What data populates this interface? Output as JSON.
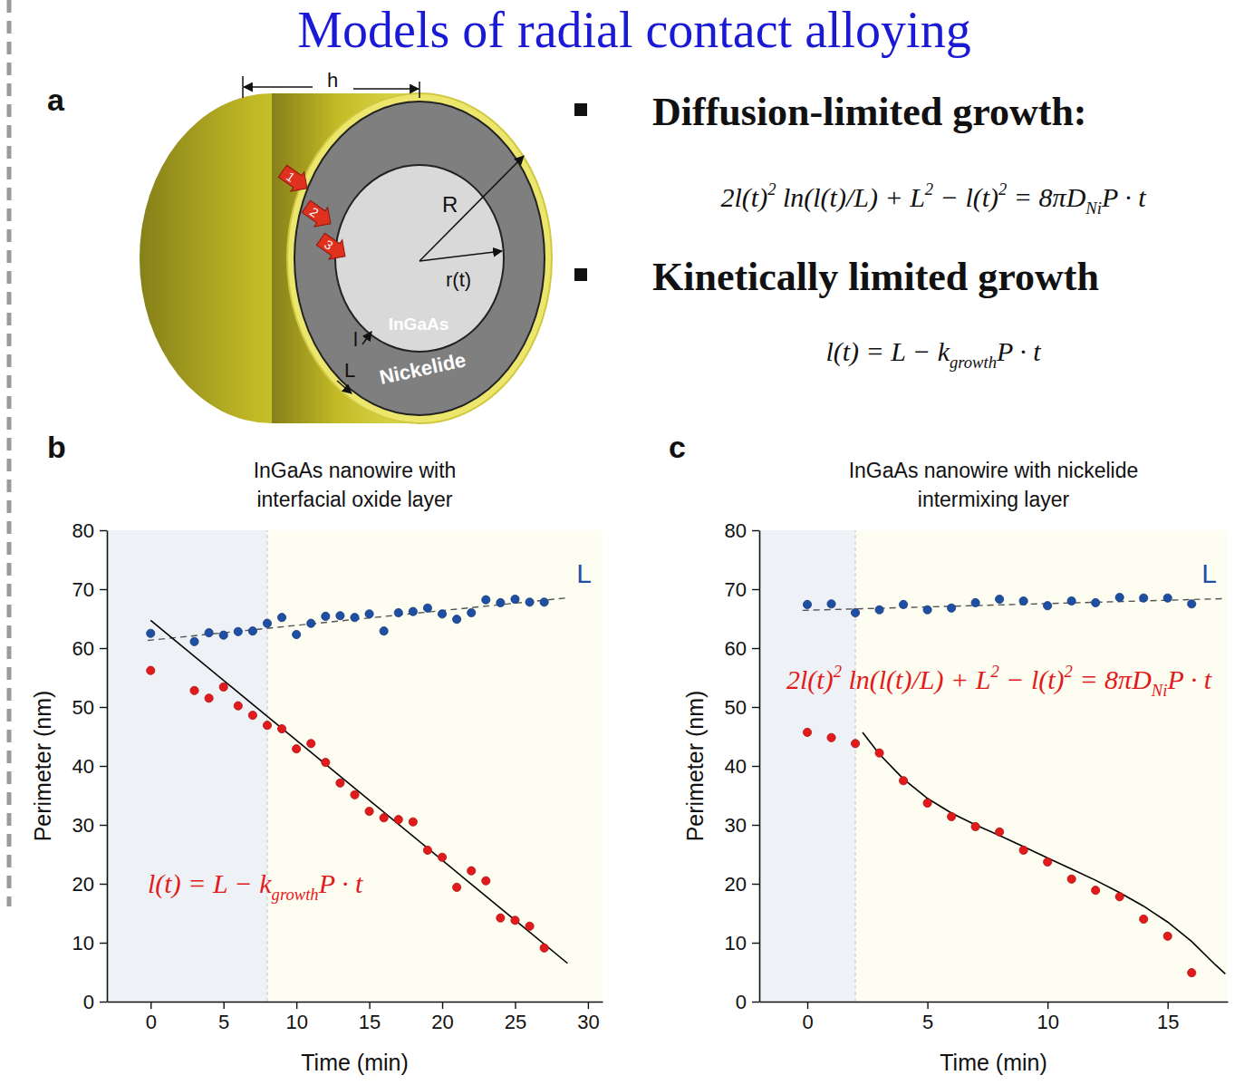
{
  "title": "Models of radial contact alloying",
  "panel_labels": [
    "a",
    "b",
    "c"
  ],
  "diagram": {
    "h": "h",
    "R": "R",
    "r": "r(t)",
    "core": "InGaAs",
    "shell": "Nickelide",
    "l": "l",
    "L": "L",
    "steps": [
      "1",
      "2",
      "3"
    ]
  },
  "equations": [
    {
      "heading": "Diffusion-limited growth:",
      "equation": [
        "2l(t)",
        {
          "sup": "2"
        },
        " ln(l(t)/L) + L",
        {
          "sup": "2"
        },
        " − l(t)",
        {
          "sup": "2"
        },
        " = 8πD",
        {
          "sub": "Ni"
        },
        "P · t"
      ]
    },
    {
      "heading": "Kinetically limited growth",
      "equation": [
        "l(t) = L − k",
        {
          "sub": "growth"
        },
        "P · t"
      ]
    }
  ],
  "chart_data": [
    {
      "type": "scatter",
      "title": "InGaAs nanowire with interfacial oxide layer",
      "x_label": "Time (min)",
      "y_label": "Perimeter (nm)",
      "xlim": [
        -3,
        31
      ],
      "xticks": [
        0,
        5,
        10,
        15,
        20,
        25,
        30
      ],
      "ylim": [
        0,
        80
      ],
      "yticks": [
        0,
        10,
        20,
        30,
        40,
        50,
        60,
        70,
        80
      ],
      "divider_x": 8,
      "annotation": [
        "l(t) = L − k",
        {
          "sub": "growth"
        },
        "P · t"
      ],
      "series": [
        {
          "name": "L",
          "type": "scatter",
          "marker": "circle",
          "color": "#1f4fa3",
          "x": [
            0,
            3,
            4,
            5,
            6,
            7,
            8,
            9,
            10,
            11,
            12,
            13,
            14,
            15,
            16,
            17,
            18,
            19,
            20,
            21,
            22,
            23,
            24,
            25,
            26,
            27
          ],
          "values": [
            62.5,
            61.1,
            62.6,
            62.2,
            62.8,
            62.9,
            64.2,
            65.2,
            62.3,
            64.2,
            65.4,
            65.5,
            65.2,
            65.8,
            62.9,
            66.0,
            66.2,
            66.8,
            65.8,
            64.9,
            66.0,
            68.2,
            67.7,
            68.3,
            67.8,
            67.8
          ]
        },
        {
          "type": "scatter",
          "marker": "circle",
          "color": "#e31a1c",
          "x": [
            0,
            3,
            4,
            5,
            6,
            7,
            8,
            9,
            10,
            11,
            12,
            13,
            14,
            15,
            16,
            17,
            18,
            19,
            20,
            21,
            22,
            23,
            24,
            25,
            26,
            27
          ],
          "values": [
            56.2,
            52.8,
            51.5,
            53.4,
            50.2,
            48.6,
            46.9,
            46.3,
            42.9,
            43.8,
            40.6,
            37.1,
            35.1,
            32.3,
            31.2,
            30.9,
            30.5,
            25.7,
            24.5,
            19.4,
            22.2,
            20.5,
            14.2,
            13.8,
            12.8,
            9.1
          ]
        },
        {
          "type": "line",
          "line_style": "dashed",
          "color": "#555555",
          "x": [
            -0.2,
            28.5
          ],
          "values": [
            61.3,
            68.5
          ]
        },
        {
          "type": "line",
          "line_style": "solid",
          "color": "#000000",
          "x": [
            0,
            28.6
          ],
          "values": [
            64.7,
            6.5
          ]
        }
      ]
    },
    {
      "type": "scatter",
      "title": "InGaAs nanowire with nickelide intermixing layer",
      "x_label": "Time (min)",
      "y_label": "Perimeter (nm)",
      "xlim": [
        -2,
        17.5
      ],
      "xticks": [
        0,
        5,
        10,
        15
      ],
      "ylim": [
        0,
        80
      ],
      "yticks": [
        0,
        10,
        20,
        30,
        40,
        50,
        60,
        70,
        80
      ],
      "divider_x": 2,
      "annotation": [
        "2l(t)",
        {
          "sup": "2"
        },
        " ln(l(t)/L) + L",
        {
          "sup": "2"
        },
        " − l(t)",
        {
          "sup": "2"
        },
        " = 8πD",
        {
          "sub": "Ni"
        },
        "P · t"
      ],
      "series": [
        {
          "name": "L",
          "type": "scatter",
          "marker": "circle",
          "color": "#1f4fa3",
          "x": [
            0,
            1,
            2,
            3,
            4,
            5,
            6,
            7,
            8,
            9,
            10,
            11,
            12,
            13,
            14,
            15,
            16
          ],
          "values": [
            67.4,
            67.5,
            66.0,
            66.5,
            67.4,
            66.5,
            66.8,
            67.7,
            68.3,
            68.0,
            67.2,
            68.0,
            67.7,
            68.6,
            68.5,
            68.5,
            67.5
          ]
        },
        {
          "type": "scatter",
          "marker": "circle",
          "color": "#e31a1c",
          "x": [
            0,
            1,
            2,
            3,
            4,
            5,
            6,
            7,
            8,
            9,
            10,
            11,
            12,
            13,
            14,
            15,
            16
          ],
          "values": [
            45.7,
            44.8,
            43.8,
            42.2,
            37.5,
            33.7,
            31.4,
            29.7,
            28.8,
            25.7,
            23.7,
            20.8,
            18.9,
            17.8,
            14.0,
            11.1,
            4.9
          ]
        },
        {
          "type": "line",
          "line_style": "dashed",
          "color": "#555555",
          "x": [
            -0.2,
            17.4
          ],
          "values": [
            66.4,
            68.4
          ]
        },
        {
          "type": "line",
          "line_style": "solid",
          "color": "#000000",
          "x": [
            2.3,
            3,
            4,
            5,
            6,
            7,
            8,
            9,
            10,
            11,
            12,
            13,
            14,
            15,
            16,
            17,
            17.4
          ],
          "values": [
            45.7,
            42.0,
            37.8,
            34.5,
            32.0,
            30.0,
            28.2,
            26.3,
            24.4,
            22.5,
            20.6,
            18.5,
            16.2,
            13.5,
            10.2,
            6.2,
            4.7
          ]
        }
      ]
    }
  ]
}
